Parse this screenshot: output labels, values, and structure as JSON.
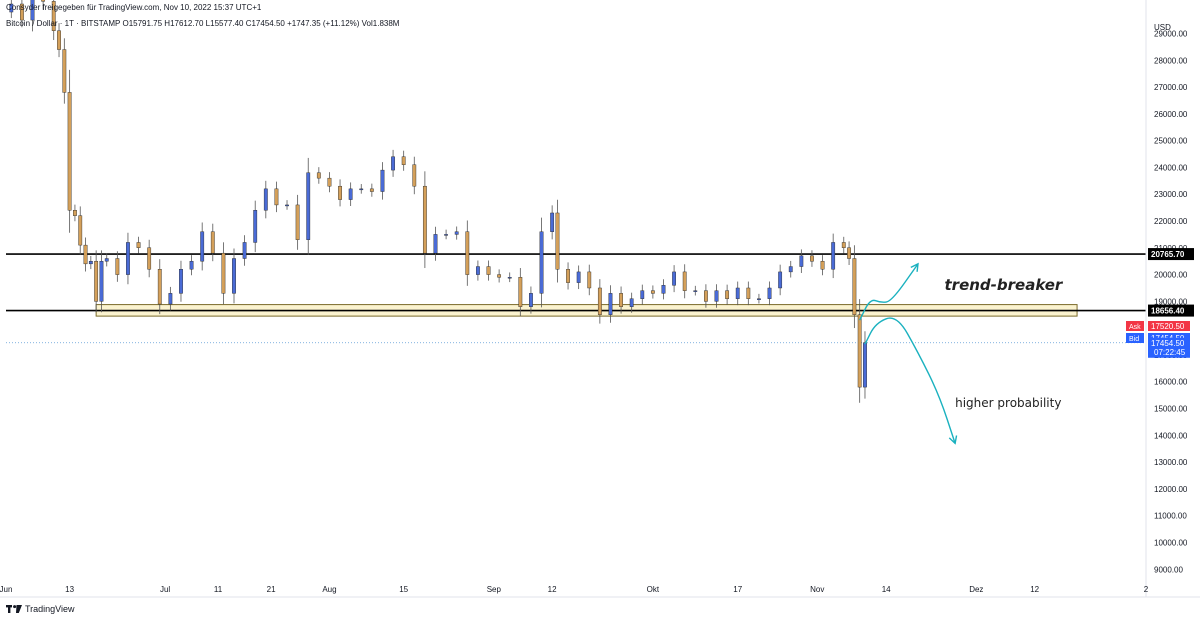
{
  "header": {
    "caption": "Consyder freigegeben für TradingView.com, Nov 10, 2022 15:37 UTC+1",
    "symbol": "Bitcoin / Dollar  ·  1T  ·  BITSTAMP",
    "ohlc": "O15791.75  H17612.70  L15577.40  C17454.50  +1747.35 (+11.12%)  Vol1.838M"
  },
  "footer": {
    "brand": "TradingView"
  },
  "chart_data": {
    "type": "candlestick",
    "currency": "USD",
    "y_axis": {
      "min": 8600,
      "max": 30100,
      "ticks": [
        29000,
        28000,
        27000,
        26000,
        25000,
        24000,
        23000,
        22000,
        21000,
        20000,
        19000,
        18000,
        17000,
        16000,
        15000,
        14000,
        13000,
        12000,
        11000,
        10000,
        9000
      ],
      "tick_labels": [
        "29000.00",
        "28000.00",
        "27000.00",
        "26000.00",
        "25000.00",
        "24000.00",
        "23000.00",
        "22000.00",
        "21000.00",
        "20000.00",
        "19000.00",
        "18000.00",
        "17000.00",
        "16000.00",
        "15000.00",
        "14000.00",
        "13000.00",
        "12000.00",
        "11000.00",
        "10000.00",
        "9000.00"
      ]
    },
    "x_axis": {
      "first_date": "2022-06-01",
      "last_date": "2023-01-02",
      "labels": [
        {
          "date": "2022-06-01",
          "text": "Jun"
        },
        {
          "date": "2022-06-13",
          "text": "13"
        },
        {
          "date": "2022-07-01",
          "text": "Jul"
        },
        {
          "date": "2022-07-11",
          "text": "11"
        },
        {
          "date": "2022-07-21",
          "text": "21"
        },
        {
          "date": "2022-08-01",
          "text": "Aug"
        },
        {
          "date": "2022-08-15",
          "text": "15"
        },
        {
          "date": "2022-09-01",
          "text": "Sep"
        },
        {
          "date": "2022-09-12",
          "text": "12"
        },
        {
          "date": "2022-10-01",
          "text": "Okt"
        },
        {
          "date": "2022-10-17",
          "text": "17"
        },
        {
          "date": "2022-11-01",
          "text": "Nov"
        },
        {
          "date": "2022-11-14",
          "text": "14"
        },
        {
          "date": "2022-12-01",
          "text": "Dez"
        },
        {
          "date": "2022-12-12",
          "text": "12"
        },
        {
          "date": "2023-01-02",
          "text": "2"
        }
      ]
    },
    "colors": {
      "up": "#4a6bd6",
      "down": "#d4a05a",
      "wick": "#555555",
      "annotation": "#1ab1bf",
      "ask": "#f23645",
      "bid": "#2962ff",
      "zone_fill": "#fbf3cf",
      "zone_border": "#7a6a2a"
    },
    "closes": [
      {
        "date": "2022-05-31",
        "close": 29800
      },
      {
        "date": "2022-06-02",
        "close": 30100
      },
      {
        "date": "2022-06-04",
        "close": 29500
      },
      {
        "date": "2022-06-06",
        "close": 31100
      },
      {
        "date": "2022-06-08",
        "close": 30200
      },
      {
        "date": "2022-06-10",
        "close": 29100
      },
      {
        "date": "2022-06-11",
        "close": 28400
      },
      {
        "date": "2022-06-12",
        "close": 26800
      },
      {
        "date": "2022-06-13",
        "close": 22400
      },
      {
        "date": "2022-06-14",
        "close": 22200
      },
      {
        "date": "2022-06-15",
        "close": 21100
      },
      {
        "date": "2022-06-16",
        "close": 20400
      },
      {
        "date": "2022-06-17",
        "close": 20500
      },
      {
        "date": "2022-06-18",
        "close": 19000
      },
      {
        "date": "2022-06-19",
        "close": 20500
      },
      {
        "date": "2022-06-20",
        "close": 20600
      },
      {
        "date": "2022-06-22",
        "close": 20000
      },
      {
        "date": "2022-06-24",
        "close": 21200
      },
      {
        "date": "2022-06-26",
        "close": 21000
      },
      {
        "date": "2022-06-28",
        "close": 20200
      },
      {
        "date": "2022-06-30",
        "close": 18900
      },
      {
        "date": "2022-07-02",
        "close": 19300
      },
      {
        "date": "2022-07-04",
        "close": 20200
      },
      {
        "date": "2022-07-06",
        "close": 20500
      },
      {
        "date": "2022-07-08",
        "close": 21600
      },
      {
        "date": "2022-07-10",
        "close": 20800
      },
      {
        "date": "2022-07-12",
        "close": 19300
      },
      {
        "date": "2022-07-14",
        "close": 20600
      },
      {
        "date": "2022-07-16",
        "close": 21200
      },
      {
        "date": "2022-07-18",
        "close": 22400
      },
      {
        "date": "2022-07-20",
        "close": 23200
      },
      {
        "date": "2022-07-22",
        "close": 22600
      },
      {
        "date": "2022-07-24",
        "close": 22600
      },
      {
        "date": "2022-07-26",
        "close": 21300
      },
      {
        "date": "2022-07-28",
        "close": 23800
      },
      {
        "date": "2022-07-30",
        "close": 23600
      },
      {
        "date": "2022-08-01",
        "close": 23300
      },
      {
        "date": "2022-08-03",
        "close": 22800
      },
      {
        "date": "2022-08-05",
        "close": 23200
      },
      {
        "date": "2022-08-07",
        "close": 23200
      },
      {
        "date": "2022-08-09",
        "close": 23100
      },
      {
        "date": "2022-08-11",
        "close": 23900
      },
      {
        "date": "2022-08-13",
        "close": 24400
      },
      {
        "date": "2022-08-15",
        "close": 24100
      },
      {
        "date": "2022-08-17",
        "close": 23300
      },
      {
        "date": "2022-08-19",
        "close": 20800
      },
      {
        "date": "2022-08-21",
        "close": 21500
      },
      {
        "date": "2022-08-23",
        "close": 21500
      },
      {
        "date": "2022-08-25",
        "close": 21600
      },
      {
        "date": "2022-08-27",
        "close": 20000
      },
      {
        "date": "2022-08-29",
        "close": 20300
      },
      {
        "date": "2022-08-31",
        "close": 20000
      },
      {
        "date": "2022-09-02",
        "close": 19900
      },
      {
        "date": "2022-09-04",
        "close": 19900
      },
      {
        "date": "2022-09-06",
        "close": 18800
      },
      {
        "date": "2022-09-08",
        "close": 19300
      },
      {
        "date": "2022-09-10",
        "close": 21600
      },
      {
        "date": "2022-09-12",
        "close": 22300
      },
      {
        "date": "2022-09-13",
        "close": 20200
      },
      {
        "date": "2022-09-15",
        "close": 19700
      },
      {
        "date": "2022-09-17",
        "close": 20100
      },
      {
        "date": "2022-09-19",
        "close": 19500
      },
      {
        "date": "2022-09-21",
        "close": 18500
      },
      {
        "date": "2022-09-23",
        "close": 19300
      },
      {
        "date": "2022-09-25",
        "close": 18800
      },
      {
        "date": "2022-09-27",
        "close": 19100
      },
      {
        "date": "2022-09-29",
        "close": 19400
      },
      {
        "date": "2022-10-01",
        "close": 19300
      },
      {
        "date": "2022-10-03",
        "close": 19600
      },
      {
        "date": "2022-10-05",
        "close": 20100
      },
      {
        "date": "2022-10-07",
        "close": 19400
      },
      {
        "date": "2022-10-09",
        "close": 19400
      },
      {
        "date": "2022-10-11",
        "close": 19000
      },
      {
        "date": "2022-10-13",
        "close": 19400
      },
      {
        "date": "2022-10-15",
        "close": 19100
      },
      {
        "date": "2022-10-17",
        "close": 19500
      },
      {
        "date": "2022-10-19",
        "close": 19100
      },
      {
        "date": "2022-10-21",
        "close": 19100
      },
      {
        "date": "2022-10-23",
        "close": 19500
      },
      {
        "date": "2022-10-25",
        "close": 20100
      },
      {
        "date": "2022-10-27",
        "close": 20300
      },
      {
        "date": "2022-10-29",
        "close": 20700
      },
      {
        "date": "2022-10-31",
        "close": 20500
      },
      {
        "date": "2022-11-02",
        "close": 20200
      },
      {
        "date": "2022-11-04",
        "close": 21200
      },
      {
        "date": "2022-11-06",
        "close": 21000
      },
      {
        "date": "2022-11-07",
        "close": 20600
      },
      {
        "date": "2022-11-08",
        "close": 18500
      },
      {
        "date": "2022-11-09",
        "close": 15800
      },
      {
        "date": "2022-11-10",
        "close": 17454.5
      }
    ],
    "horizontal_lines": [
      {
        "value": 20765.7,
        "label": "20765.70"
      },
      {
        "value": 18656.4,
        "label": "18656.40"
      }
    ],
    "support_zone": {
      "from_date": "2022-06-18",
      "to_date": "2022-12-20",
      "low": 18450,
      "high": 18880
    },
    "current_price_line": 17454.5,
    "price_tags": [
      {
        "name": "Ask",
        "label": "Ask",
        "value": "17520.50"
      },
      {
        "name": "Bid",
        "label": "Bid",
        "value": "17454.50"
      },
      {
        "name": "Last",
        "label": "17454.50",
        "value": "07:22:45"
      }
    ],
    "annotations": [
      {
        "text": "trend-breaker",
        "date": "2022-11-25",
        "value": 19420
      },
      {
        "text": "higher probability",
        "date": "2022-11-27",
        "value": 15050
      }
    ],
    "arrows": [
      {
        "name": "upside-arrow",
        "points": [
          {
            "date": "2022-11-09",
            "value": 18300
          },
          {
            "date": "2022-11-11",
            "value": 19100
          },
          {
            "date": "2022-11-13",
            "value": 18950
          },
          {
            "date": "2022-11-15",
            "value": 19000
          },
          {
            "date": "2022-11-20",
            "value": 20400
          }
        ]
      },
      {
        "name": "downside-arrow",
        "points": [
          {
            "date": "2022-11-10",
            "value": 17400
          },
          {
            "date": "2022-11-12",
            "value": 18200
          },
          {
            "date": "2022-11-16",
            "value": 18500
          },
          {
            "date": "2022-11-20",
            "value": 17100
          },
          {
            "date": "2022-11-24",
            "value": 15500
          },
          {
            "date": "2022-11-27",
            "value": 13700
          }
        ]
      }
    ]
  }
}
